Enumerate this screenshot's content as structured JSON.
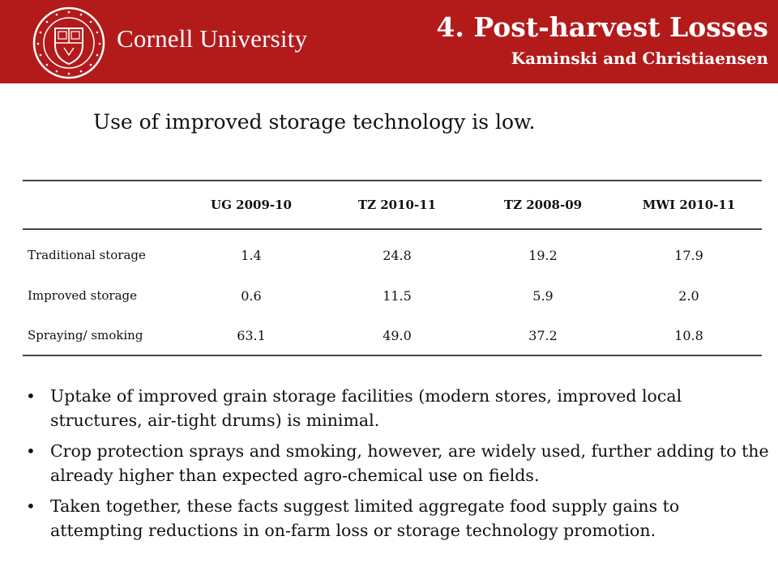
{
  "header": {
    "university_name": "Cornell University",
    "title": "4. Post-harvest Losses",
    "subtitle": "Kaminski and Christiaensen",
    "seal_text": "CORNELL UNIVERSITY · FOUNDED A.D. 1865",
    "brand_color": "#b31b1b"
  },
  "headline": "Use of improved storage technology is low.",
  "table": {
    "columns": [
      "UG 2009-10",
      "TZ 2010-11",
      "TZ 2008-09",
      "MWI 2010-11"
    ],
    "rows": [
      {
        "label": "Traditional storage",
        "values": [
          "1.4",
          "24.8",
          "19.2",
          "17.9"
        ]
      },
      {
        "label": "Improved storage",
        "values": [
          "0.6",
          "11.5",
          "5.9",
          "2.0"
        ]
      },
      {
        "label": "Spraying/ smoking",
        "values": [
          "63.1",
          "49.0",
          "37.2",
          "10.8"
        ]
      }
    ]
  },
  "bullets": [
    "Uptake of improved grain storage facilities (modern stores, improved local structures, air-tight drums) is minimal.",
    "Crop protection sprays and smoking, however, are widely used, further adding to the already higher than expected agro-chemical use on fields.",
    "Taken together, these facts suggest limited aggregate food supply gains to attempting reductions in on-farm loss or storage technology promotion."
  ]
}
